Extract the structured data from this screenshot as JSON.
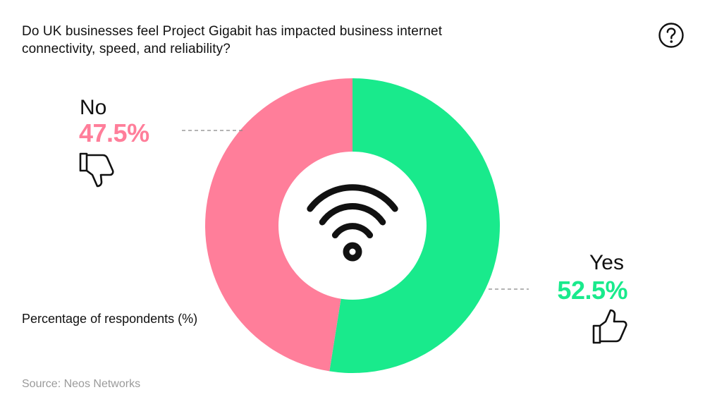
{
  "title": "Do UK businesses feel Project Gigabit has impacted business internet connectivity, speed, and reliability?",
  "help_icon": "question-circle-icon",
  "center_icon": "wifi-icon",
  "unit_label": "Percentage of respondents (%)",
  "source": "Source: Neos Networks",
  "colors": {
    "yes": "#19EA8C",
    "no": "#FF7E9A",
    "text": "#111111",
    "leader": "#888888"
  },
  "chart_data": {
    "type": "pie",
    "title": "Do UK businesses feel Project Gigabit has impacted business internet connectivity, speed, and reliability?",
    "donut": true,
    "categories": [
      "Yes",
      "No"
    ],
    "values": [
      52.5,
      47.5
    ],
    "value_labels": [
      "52.5%",
      "47.5%"
    ],
    "colors": [
      "#19EA8C",
      "#FF7E9A"
    ],
    "icons": [
      "thumbs-up-icon",
      "thumbs-down-icon"
    ]
  }
}
